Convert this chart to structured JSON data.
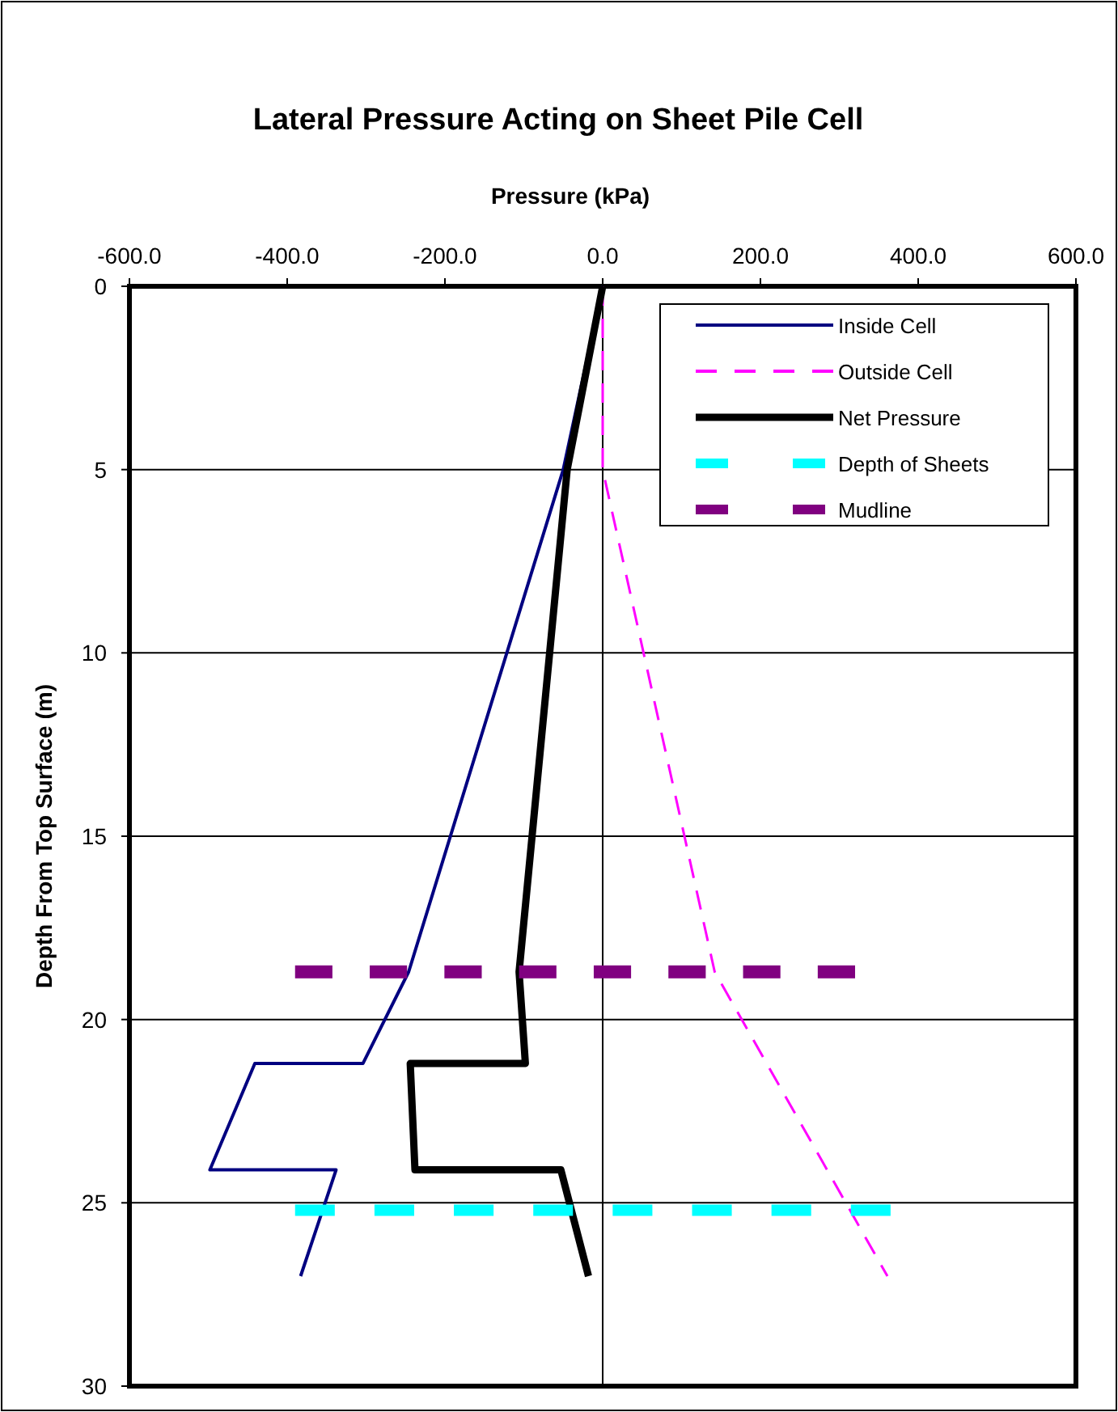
{
  "chart_data": {
    "type": "line",
    "title": "Lateral Pressure Acting on Sheet Pile Cell",
    "xlabel": "Pressure (kPa)",
    "ylabel": "Depth From Top Surface (m)",
    "xlim": [
      -600,
      600
    ],
    "xticks": [
      {
        "value": -600,
        "label": "-600.0"
      },
      {
        "value": -400,
        "label": "-400.0"
      },
      {
        "value": -200,
        "label": "-200.0"
      },
      {
        "value": 0,
        "label": "0.0"
      },
      {
        "value": 200,
        "label": "200.0"
      },
      {
        "value": 400,
        "label": "400.0"
      },
      {
        "value": 600,
        "label": "600.0"
      }
    ],
    "ylim": [
      30,
      0
    ],
    "yticks": [
      0,
      5,
      10,
      15,
      20,
      25,
      30
    ],
    "grid": "y",
    "legend": "top right",
    "marker": "none",
    "ref_lines": [
      {
        "axis": "x",
        "value": 0
      }
    ],
    "series": [
      {
        "name": "Inside Cell",
        "color": "#000080",
        "line_style": "solid",
        "x": [
          0,
          -50,
          -246,
          -304,
          -441,
          -498,
          -338,
          -383
        ],
        "values": [
          0,
          5,
          18.7,
          21.2,
          21.2,
          24.1,
          24.1,
          27
        ]
      },
      {
        "name": "Outside Cell",
        "color": "#ff00ff",
        "line_style": "dashed",
        "x": [
          0,
          0,
          142,
          361
        ],
        "values": [
          0,
          5,
          18.7,
          27
        ]
      },
      {
        "name": "Net Pressure",
        "color": "#000000",
        "line_style": "solid",
        "x": [
          0,
          -45,
          -106,
          -98,
          -244,
          -238,
          -53,
          -18
        ],
        "values": [
          0,
          5,
          18.7,
          21.2,
          21.2,
          24.1,
          24.1,
          27
        ]
      },
      {
        "name": "Depth of Sheets",
        "color": "#00ffff",
        "line_style": "dashed",
        "x": [
          -390,
          365
        ],
        "values": [
          25.2,
          25.2
        ]
      },
      {
        "name": "Mudline",
        "color": "#800080",
        "line_style": "dashed",
        "x": [
          -390,
          320
        ],
        "values": [
          18.7,
          18.7
        ]
      }
    ]
  }
}
